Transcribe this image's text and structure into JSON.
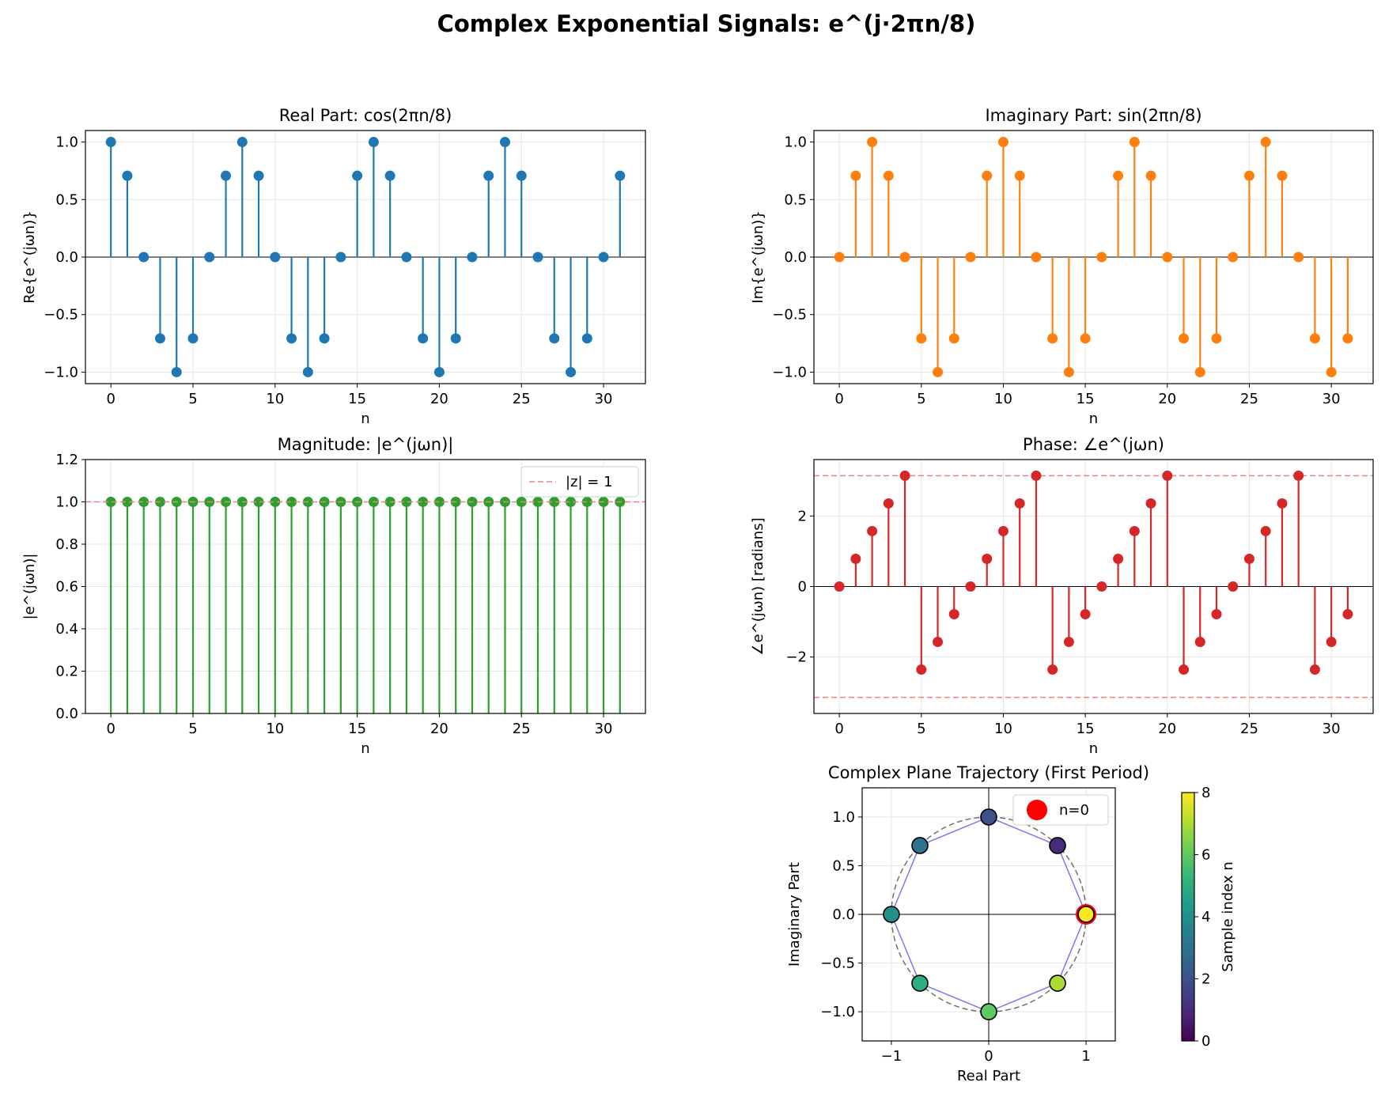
{
  "figure_title": "Complex Exponential Signals: e^(j·2πn/8)",
  "chart_data": [
    {
      "type": "stem",
      "title": "Real Part: cos(2πn/8)",
      "xlabel": "n",
      "ylabel": "Re{e^(jωn)}",
      "xlim": [
        -1.55,
        32.55
      ],
      "ylim": [
        -1.1,
        1.1
      ],
      "xticks": [
        0,
        5,
        10,
        15,
        20,
        25,
        30
      ],
      "yticks": [
        -1.0,
        -0.5,
        0.0,
        0.5,
        1.0
      ],
      "grid": true,
      "color": "#1f77b4",
      "x": [
        0,
        1,
        2,
        3,
        4,
        5,
        6,
        7,
        8,
        9,
        10,
        11,
        12,
        13,
        14,
        15,
        16,
        17,
        18,
        19,
        20,
        21,
        22,
        23,
        24,
        25,
        26,
        27,
        28,
        29,
        30,
        31
      ],
      "y": [
        1.0,
        0.707,
        0.0,
        -0.707,
        -1.0,
        -0.707,
        0.0,
        0.707,
        1.0,
        0.707,
        0.0,
        -0.707,
        -1.0,
        -0.707,
        0.0,
        0.707,
        1.0,
        0.707,
        0.0,
        -0.707,
        -1.0,
        -0.707,
        0.0,
        0.707,
        1.0,
        0.707,
        0.0,
        -0.707,
        -1.0,
        -0.707,
        0.0,
        0.707
      ]
    },
    {
      "type": "stem",
      "title": "Imaginary Part: sin(2πn/8)",
      "xlabel": "n",
      "ylabel": "Im{e^(jωn)}",
      "xlim": [
        -1.55,
        32.55
      ],
      "ylim": [
        -1.1,
        1.1
      ],
      "xticks": [
        0,
        5,
        10,
        15,
        20,
        25,
        30
      ],
      "yticks": [
        -1.0,
        -0.5,
        0.0,
        0.5,
        1.0
      ],
      "grid": true,
      "color": "#ff7f0e",
      "x": [
        0,
        1,
        2,
        3,
        4,
        5,
        6,
        7,
        8,
        9,
        10,
        11,
        12,
        13,
        14,
        15,
        16,
        17,
        18,
        19,
        20,
        21,
        22,
        23,
        24,
        25,
        26,
        27,
        28,
        29,
        30,
        31
      ],
      "y": [
        0.0,
        0.707,
        1.0,
        0.707,
        0.0,
        -0.707,
        -1.0,
        -0.707,
        0.0,
        0.707,
        1.0,
        0.707,
        0.0,
        -0.707,
        -1.0,
        -0.707,
        0.0,
        0.707,
        1.0,
        0.707,
        0.0,
        -0.707,
        -1.0,
        -0.707,
        0.0,
        0.707,
        1.0,
        0.707,
        0.0,
        -0.707,
        -1.0,
        -0.707
      ]
    },
    {
      "type": "stem",
      "title": "Magnitude: |e^(jωn)|",
      "xlabel": "n",
      "ylabel": "|e^(jωn)|",
      "xlim": [
        -1.55,
        32.55
      ],
      "ylim": [
        0.0,
        1.2
      ],
      "xticks": [
        0,
        5,
        10,
        15,
        20,
        25,
        30
      ],
      "yticks": [
        0.0,
        0.2,
        0.4,
        0.6,
        0.8,
        1.0,
        1.2
      ],
      "grid": true,
      "color": "#2ca02c",
      "reference_line": {
        "y": 1.0,
        "label": "|z| = 1",
        "color": "#ff0000"
      },
      "legend_position": "upper right",
      "x": [
        0,
        1,
        2,
        3,
        4,
        5,
        6,
        7,
        8,
        9,
        10,
        11,
        12,
        13,
        14,
        15,
        16,
        17,
        18,
        19,
        20,
        21,
        22,
        23,
        24,
        25,
        26,
        27,
        28,
        29,
        30,
        31
      ],
      "y": [
        1,
        1,
        1,
        1,
        1,
        1,
        1,
        1,
        1,
        1,
        1,
        1,
        1,
        1,
        1,
        1,
        1,
        1,
        1,
        1,
        1,
        1,
        1,
        1,
        1,
        1,
        1,
        1,
        1,
        1,
        1,
        1
      ]
    },
    {
      "type": "stem",
      "title": "Phase: ∠e^(jωn)",
      "xlabel": "n",
      "ylabel": "∠e^(jωn) [radians]",
      "xlim": [
        -1.55,
        32.55
      ],
      "ylim": [
        -3.6,
        3.6
      ],
      "xticks": [
        0,
        5,
        10,
        15,
        20,
        25,
        30
      ],
      "yticks": [
        -2,
        0,
        2
      ],
      "grid": true,
      "color": "#d62728",
      "reference_lines": [
        3.1416,
        -3.1416
      ],
      "x": [
        0,
        1,
        2,
        3,
        4,
        5,
        6,
        7,
        8,
        9,
        10,
        11,
        12,
        13,
        14,
        15,
        16,
        17,
        18,
        19,
        20,
        21,
        22,
        23,
        24,
        25,
        26,
        27,
        28,
        29,
        30,
        31
      ],
      "y": [
        0.0,
        0.785,
        1.571,
        2.356,
        3.142,
        -2.356,
        -1.571,
        -0.785,
        0.0,
        0.785,
        1.571,
        2.356,
        3.142,
        -2.356,
        -1.571,
        -0.785,
        0.0,
        0.785,
        1.571,
        2.356,
        3.142,
        -2.356,
        -1.571,
        -0.785,
        0.0,
        0.785,
        1.571,
        2.356,
        3.142,
        -2.356,
        -1.571,
        -0.785
      ]
    },
    {
      "type": "scatter",
      "title": "Complex Plane Trajectory (First Period)",
      "xlabel": "Real Part",
      "ylabel": "Imaginary Part",
      "xlim": [
        -1.3,
        1.3
      ],
      "ylim": [
        -1.3,
        1.3
      ],
      "xticks": [
        -1,
        0,
        1
      ],
      "yticks": [
        -1.0,
        -0.5,
        0.0,
        0.5,
        1.0
      ],
      "grid": true,
      "unit_circle": true,
      "line_color": "#6060ee",
      "n": [
        0,
        1,
        2,
        3,
        4,
        5,
        6,
        7,
        8
      ],
      "x": [
        1.0,
        0.707,
        0.0,
        -0.707,
        -1.0,
        -0.707,
        0.0,
        0.707,
        1.0
      ],
      "y": [
        0.0,
        0.707,
        1.0,
        0.707,
        0.0,
        -0.707,
        -1.0,
        -0.707,
        0.0
      ],
      "start_marker": {
        "label": "n=0",
        "color": "#ff0000"
      },
      "legend_position": "upper right",
      "colorbar": {
        "label": "Sample index n",
        "range": [
          0,
          8
        ],
        "ticks": [
          0,
          2,
          4,
          6,
          8
        ],
        "colormap": "viridis"
      }
    }
  ]
}
